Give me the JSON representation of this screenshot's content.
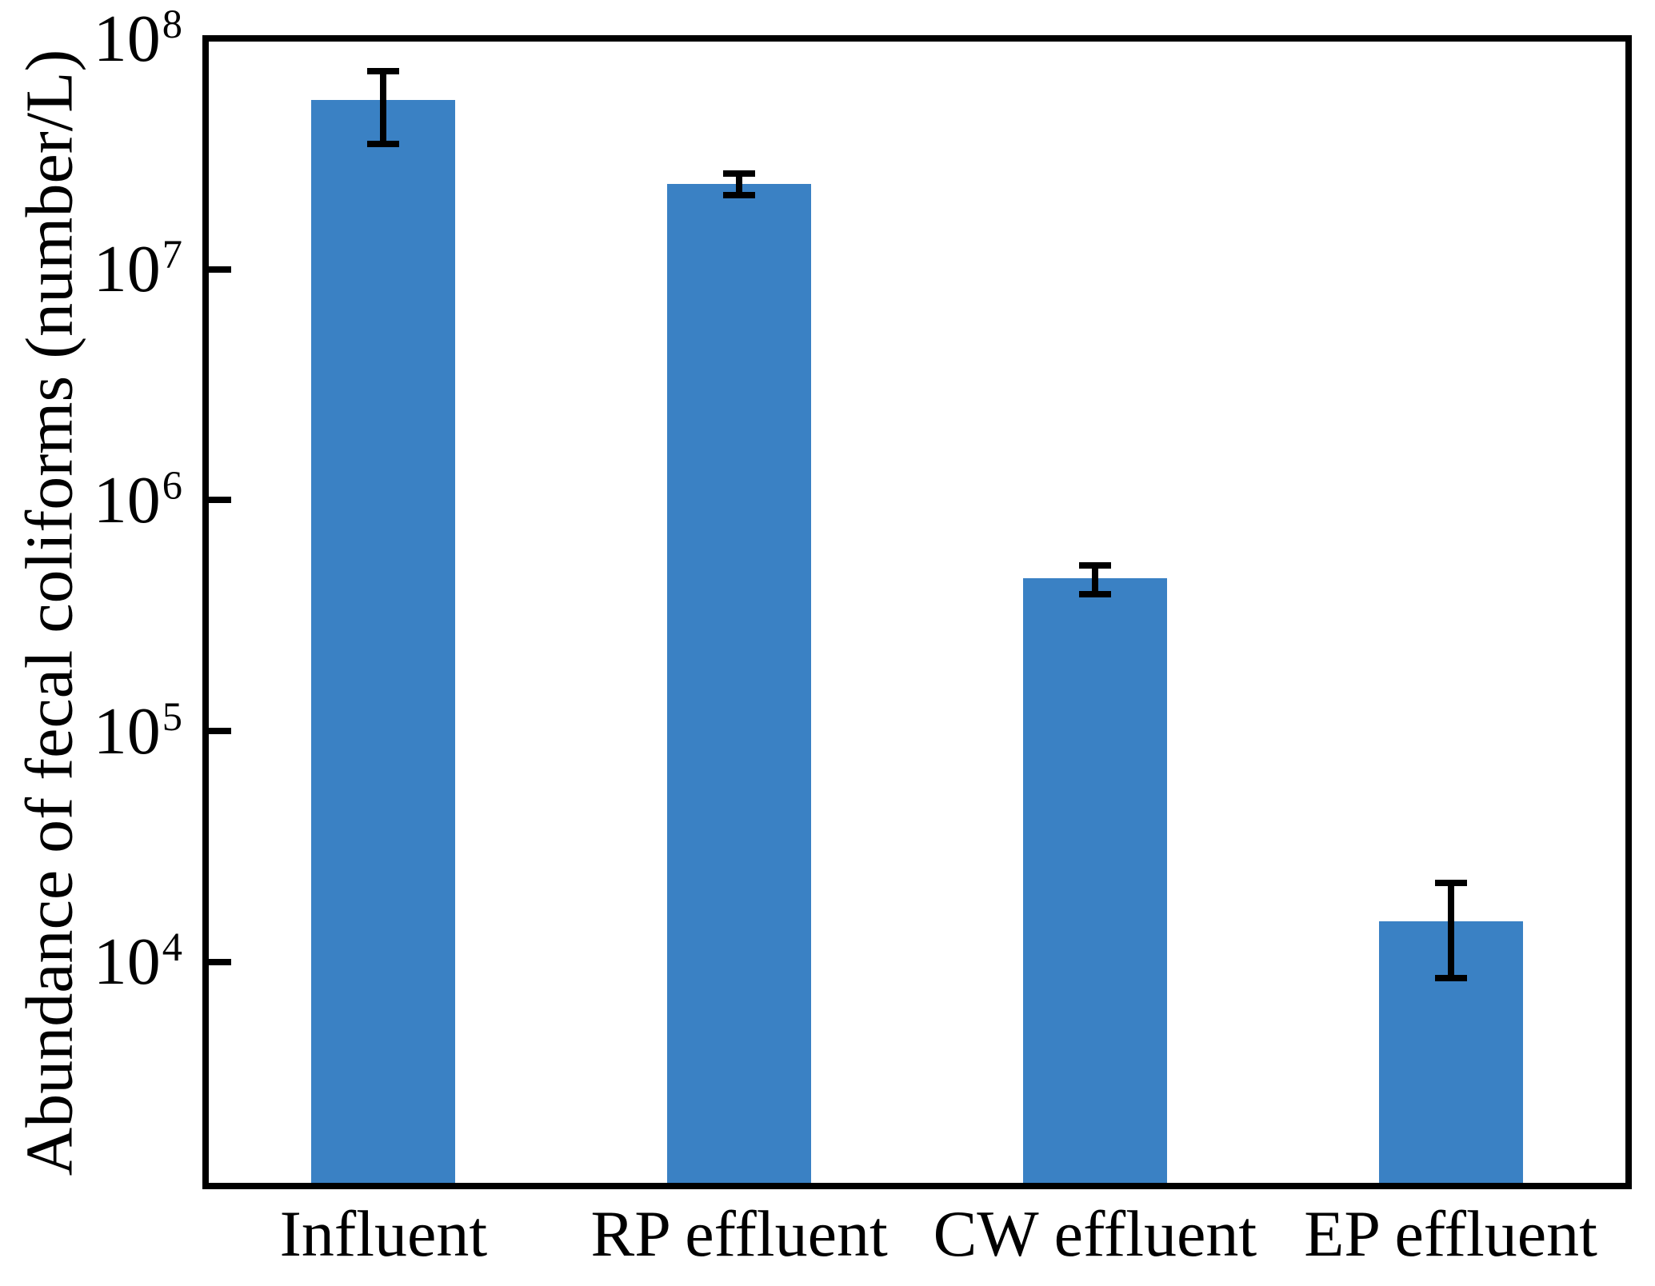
{
  "figure": {
    "background_color": "#ffffff",
    "axis_color": "#000000",
    "text_color": "#000000"
  },
  "chart_data": {
    "type": "bar",
    "y_scale": "log",
    "title": "",
    "xlabel": "",
    "ylabel": "Abundance of fecal coliforms (number/L)",
    "categories": [
      "Influent",
      "RP effluent",
      "CW effluent",
      "EP effluent"
    ],
    "values": [
      54000000,
      23500000,
      460000,
      15000
    ],
    "error_upper_bounds": [
      72000000,
      26000000,
      520000,
      22000
    ],
    "error_lower_bounds": [
      35000000,
      21000000,
      390000,
      8500
    ],
    "bar_color": "#3A81C4",
    "error_bar_color": "#000000",
    "ylim": [
      1050,
      100000000
    ],
    "ytick_exponents": [
      8,
      7,
      6,
      5,
      4
    ],
    "ytick_base": "10",
    "grid": "off",
    "legend": "none",
    "frame": "full-box"
  }
}
